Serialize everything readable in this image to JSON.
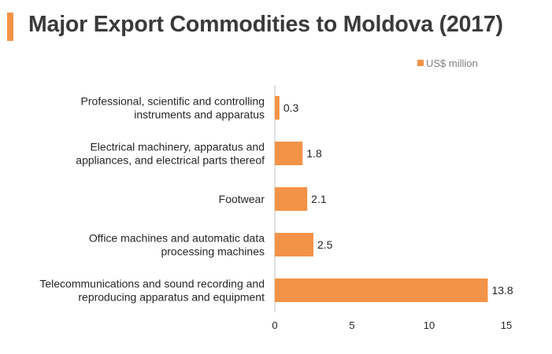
{
  "header": {
    "title": "Major Export Commodities to Moldova (2017)"
  },
  "colors": {
    "accent": "#f39347",
    "bar": "#f39347",
    "axis": "#bfbfbf",
    "text": "#262626"
  },
  "chart_data": {
    "type": "bar",
    "orientation": "horizontal",
    "title": "Major Export Commodities to Moldova (2017)",
    "xlabel": "",
    "ylabel": "",
    "xlim": [
      0,
      15
    ],
    "ticks": [
      "0",
      "5",
      "10",
      "15"
    ],
    "tick_values": [
      0,
      5,
      10,
      15
    ],
    "legend": {
      "label": "US$ million",
      "position": "top-right"
    },
    "categories": [
      [
        "Professional, scientific and controlling",
        "instruments and apparatus"
      ],
      [
        "Electrical machinery, apparatus and",
        "appliances, and electrical parts thereof"
      ],
      [
        "Footwear"
      ],
      [
        "Office machines and automatic data",
        "processing machines"
      ],
      [
        "Telecommunications and sound recording and",
        "reproducing apparatus and equipment"
      ]
    ],
    "values": [
      0.3,
      1.8,
      2.1,
      2.5,
      13.8
    ],
    "value_labels": [
      "0.3",
      "1.8",
      "2.1",
      "2.5",
      "13.8"
    ]
  }
}
